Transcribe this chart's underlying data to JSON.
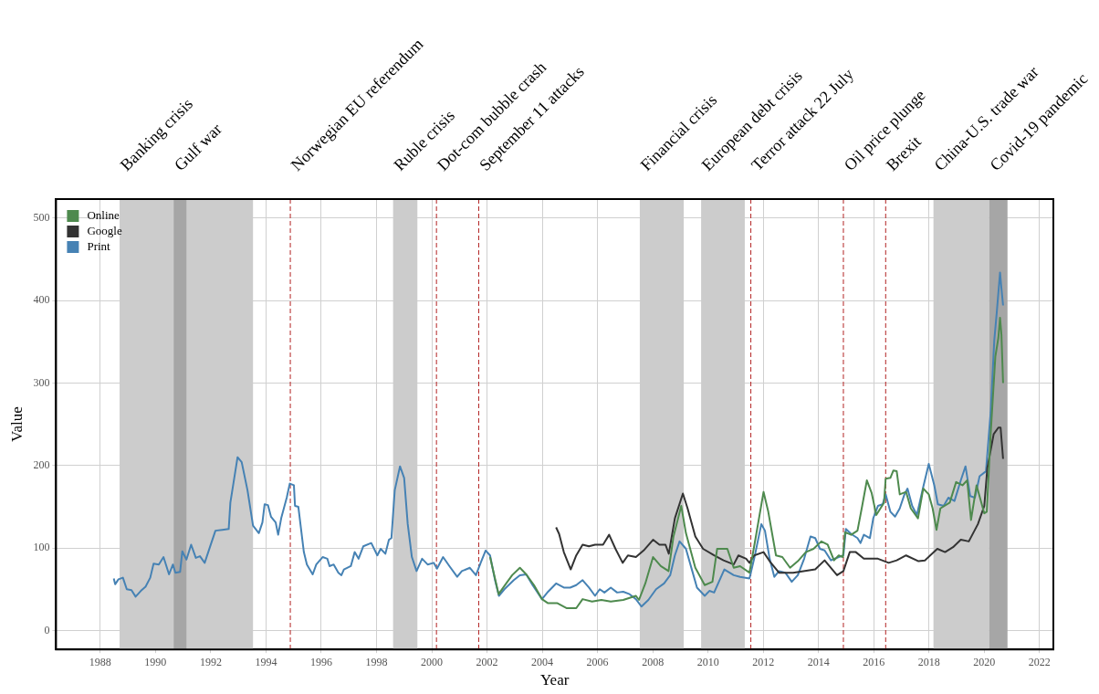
{
  "chart_data": {
    "type": "line",
    "xlabel": "Year",
    "ylabel": "Value",
    "xlim": [
      1986.4,
      2022.5
    ],
    "xticks": [
      1988,
      1990,
      1992,
      1994,
      1996,
      1998,
      2000,
      2002,
      2004,
      2006,
      2008,
      2010,
      2012,
      2014,
      2016,
      2018,
      2020,
      2022
    ],
    "ylim": [
      -23,
      523
    ],
    "yticks": [
      0,
      100,
      200,
      300,
      400,
      500
    ],
    "grid": true,
    "legend": "top left",
    "marker": "none",
    "line_style": "solid",
    "bands": [
      {
        "axis": "x",
        "from": 1988.7,
        "to": 1993.53,
        "label": "Banking crisis",
        "color": "#cccccc"
      },
      {
        "axis": "x",
        "from": 1990.66,
        "to": 1991.12,
        "label": "Gulf war",
        "color": "#a6a6a6"
      },
      {
        "axis": "x",
        "from": 1998.6,
        "to": 1999.48,
        "label": "Ruble crisis",
        "color": "#cccccc"
      },
      {
        "axis": "x",
        "from": 2007.53,
        "to": 2009.12,
        "label": "Financial crisis",
        "color": "#cccccc"
      },
      {
        "axis": "x",
        "from": 2009.75,
        "to": 2011.33,
        "label": "European debt crisis",
        "color": "#cccccc"
      },
      {
        "axis": "x",
        "from": 2018.16,
        "to": 2020.18,
        "label": "China-U.S. trade war",
        "color": "#cccccc"
      },
      {
        "axis": "x",
        "from": 2020.18,
        "to": 2020.84,
        "label": "Covid-19 pandemic",
        "color": "#a6a6a6"
      }
    ],
    "ref_lines": [
      {
        "axis": "x",
        "value": 1994.88,
        "label": "Norwegian EU referendum",
        "color": "#b22222",
        "line_style": "dashed"
      },
      {
        "axis": "x",
        "value": 2000.17,
        "label": "Dot-com bubble crash",
        "color": "#b22222",
        "line_style": "dashed"
      },
      {
        "axis": "x",
        "value": 2001.7,
        "label": "September 11 attacks",
        "color": "#b22222",
        "line_style": "dashed"
      },
      {
        "axis": "x",
        "value": 2011.55,
        "label": "Terror attack 22 July",
        "color": "#b22222",
        "line_style": "dashed"
      },
      {
        "axis": "x",
        "value": 2014.9,
        "label": "Oil price plunge",
        "color": "#b22222",
        "line_style": "dashed"
      },
      {
        "axis": "x",
        "value": 2016.43,
        "label": "Brexit",
        "color": "#b22222",
        "line_style": "dashed"
      }
    ],
    "series": [
      {
        "name": "Online",
        "color": "#4e8a4e",
        "x": [
          2002.11,
          2002.42,
          2002.63,
          2002.91,
          2003.19,
          2003.42,
          2003.7,
          2003.99,
          2004.21,
          2004.55,
          2004.89,
          2005.23,
          2005.46,
          2005.8,
          2006.14,
          2006.48,
          2006.93,
          2007.39,
          2007.5,
          2007.73,
          2008.01,
          2008.29,
          2008.57,
          2008.75,
          2009.03,
          2009.2,
          2009.54,
          2009.88,
          2010.16,
          2010.33,
          2010.7,
          2010.93,
          2011.16,
          2011.5,
          2011.67,
          2012.01,
          2012.18,
          2012.46,
          2012.69,
          2012.97,
          2013.25,
          2013.54,
          2013.82,
          2014.1,
          2014.33,
          2014.56,
          2014.73,
          2014.88,
          2014.96,
          2015.18,
          2015.41,
          2015.58,
          2015.75,
          2015.92,
          2016.09,
          2016.37,
          2016.43,
          2016.6,
          2016.71,
          2016.83,
          2016.94,
          2017.17,
          2017.34,
          2017.6,
          2017.79,
          2017.99,
          2018.13,
          2018.27,
          2018.41,
          2018.75,
          2018.98,
          2019.21,
          2019.38,
          2019.52,
          2019.72,
          2020.0,
          2020.09,
          2020.23,
          2020.4,
          2020.51,
          2020.57,
          2020.62,
          2020.68
        ],
        "values": [
          89,
          44,
          54,
          67,
          76,
          68,
          55,
          38,
          33,
          33,
          27,
          27,
          38,
          35,
          37,
          35,
          37,
          42,
          37,
          57,
          89,
          78,
          72,
          114,
          151,
          118,
          76,
          55,
          59,
          99,
          99,
          76,
          78,
          70,
          102,
          168,
          144,
          91,
          89,
          76,
          84,
          95,
          99,
          108,
          104,
          85,
          91,
          89,
          119,
          116,
          121,
          151,
          182,
          167,
          140,
          155,
          184,
          185,
          194,
          193,
          165,
          168,
          148,
          136,
          172,
          165,
          148,
          122,
          148,
          155,
          180,
          176,
          182,
          134,
          176,
          142,
          144,
          238,
          332,
          355,
          379,
          359,
          300
        ]
      },
      {
        "name": "Google",
        "color": "#333333",
        "x": [
          2004.5,
          2004.61,
          2004.78,
          2005.03,
          2005.23,
          2005.46,
          2005.69,
          2005.91,
          2006.2,
          2006.42,
          2006.65,
          2006.91,
          2007.1,
          2007.39,
          2007.67,
          2008.01,
          2008.24,
          2008.46,
          2008.58,
          2008.8,
          2009.09,
          2009.26,
          2009.54,
          2009.82,
          2010.22,
          2010.56,
          2010.93,
          2011.1,
          2011.38,
          2011.5,
          2011.67,
          2012.01,
          2012.23,
          2012.57,
          2013.08,
          2013.88,
          2014.22,
          2014.67,
          2014.9,
          2015.13,
          2015.35,
          2015.64,
          2016.15,
          2016.54,
          2016.83,
          2017.17,
          2017.62,
          2017.85,
          2018.3,
          2018.58,
          2018.87,
          2019.15,
          2019.44,
          2019.77,
          2020.0,
          2020.11,
          2020.34,
          2020.51,
          2020.59,
          2020.68
        ],
        "values": [
          125,
          117,
          95,
          74,
          91,
          104,
          102,
          104,
          104,
          116,
          99,
          82,
          91,
          89,
          97,
          110,
          104,
          104,
          93,
          136,
          166,
          148,
          114,
          99,
          91,
          85,
          80,
          91,
          87,
          82,
          91,
          95,
          84,
          70,
          70,
          74,
          85,
          67,
          72,
          95,
          95,
          87,
          87,
          82,
          85,
          91,
          84,
          85,
          99,
          95,
          101,
          110,
          108,
          129,
          151,
          197,
          238,
          246,
          246,
          208
        ]
      },
      {
        "name": "Print",
        "color": "#4682b4",
        "x": [
          1988.49,
          1988.54,
          1988.66,
          1988.82,
          1988.96,
          1989.13,
          1989.28,
          1989.47,
          1989.64,
          1989.81,
          1989.93,
          1990.12,
          1990.29,
          1990.49,
          1990.63,
          1990.72,
          1990.89,
          1990.97,
          1991.12,
          1991.29,
          1991.46,
          1991.61,
          1991.78,
          1991.97,
          1992.17,
          1992.42,
          1992.65,
          1992.71,
          1992.97,
          1993.12,
          1993.33,
          1993.53,
          1993.74,
          1993.87,
          1993.95,
          1994.07,
          1994.18,
          1994.35,
          1994.44,
          1994.55,
          1994.75,
          1994.86,
          1995.01,
          1995.05,
          1995.17,
          1995.37,
          1995.48,
          1995.69,
          1995.82,
          1996.05,
          1996.22,
          1996.3,
          1996.45,
          1996.62,
          1996.73,
          1996.82,
          1997.07,
          1997.21,
          1997.35,
          1997.52,
          1997.81,
          1998.03,
          1998.15,
          1998.32,
          1998.45,
          1998.54,
          1998.66,
          1998.85,
          1999.0,
          1999.13,
          1999.28,
          1999.45,
          1999.65,
          1999.85,
          2000.07,
          2000.19,
          2000.41,
          2000.64,
          2000.92,
          2001.09,
          2001.38,
          2001.6,
          2001.77,
          2001.95,
          2002.11,
          2002.29,
          2002.43,
          2002.63,
          2002.97,
          2003.19,
          2003.42,
          2003.65,
          2003.99,
          2004.21,
          2004.5,
          2004.78,
          2005.01,
          2005.23,
          2005.46,
          2005.69,
          2005.91,
          2006.08,
          2006.25,
          2006.48,
          2006.71,
          2006.93,
          2007.16,
          2007.39,
          2007.59,
          2007.84,
          2008.12,
          2008.41,
          2008.63,
          2008.8,
          2008.97,
          2009.2,
          2009.43,
          2009.6,
          2009.88,
          2010.05,
          2010.22,
          2010.59,
          2010.93,
          2011.16,
          2011.5,
          2011.67,
          2011.93,
          2012.06,
          2012.23,
          2012.4,
          2012.57,
          2012.8,
          2013.03,
          2013.25,
          2013.48,
          2013.71,
          2013.88,
          2014.05,
          2014.22,
          2014.45,
          2014.73,
          2014.9,
          2014.99,
          2015.18,
          2015.41,
          2015.52,
          2015.64,
          2015.86,
          2015.98,
          2016.15,
          2016.32,
          2016.43,
          2016.6,
          2016.77,
          2016.94,
          2017.11,
          2017.22,
          2017.39,
          2017.56,
          2017.79,
          2017.99,
          2018.19,
          2018.32,
          2018.53,
          2018.7,
          2018.92,
          2019.15,
          2019.32,
          2019.49,
          2019.66,
          2019.83,
          2020.06,
          2020.23,
          2020.36,
          2020.45,
          2020.57,
          2020.62,
          2020.68
        ],
        "values": [
          63,
          56,
          62,
          64,
          50,
          49,
          41,
          48,
          53,
          64,
          81,
          80,
          89,
          68,
          80,
          70,
          71,
          96,
          86,
          104,
          88,
          90,
          82,
          101,
          121,
          122,
          123,
          155,
          210,
          204,
          170,
          127,
          118,
          131,
          153,
          152,
          138,
          131,
          116,
          136,
          161,
          178,
          176,
          151,
          150,
          95,
          80,
          68,
          80,
          89,
          87,
          78,
          80,
          70,
          67,
          74,
          78,
          95,
          87,
          102,
          106,
          91,
          99,
          93,
          110,
          112,
          170,
          199,
          185,
          129,
          89,
          72,
          87,
          80,
          82,
          75,
          89,
          78,
          65,
          72,
          76,
          67,
          82,
          97,
          91,
          61,
          42,
          50,
          61,
          67,
          68,
          55,
          38,
          47,
          57,
          52,
          52,
          55,
          61,
          52,
          42,
          50,
          46,
          52,
          46,
          47,
          44,
          38,
          29,
          37,
          50,
          57,
          67,
          91,
          108,
          99,
          72,
          52,
          42,
          48,
          46,
          74,
          67,
          65,
          63,
          87,
          129,
          121,
          87,
          65,
          72,
          70,
          59,
          67,
          87,
          114,
          112,
          99,
          97,
          85,
          89,
          91,
          123,
          117,
          112,
          106,
          116,
          112,
          136,
          151,
          153,
          165,
          144,
          138,
          148,
          165,
          172,
          151,
          140,
          174,
          202,
          176,
          153,
          151,
          161,
          157,
          182,
          199,
          163,
          161,
          187,
          193,
          264,
          351,
          385,
          434,
          415,
          394
        ]
      }
    ]
  }
}
